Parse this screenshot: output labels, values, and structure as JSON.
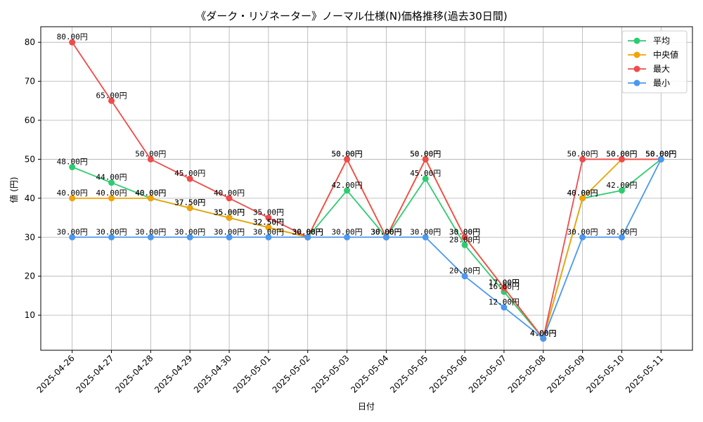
{
  "chart_data": {
    "type": "line",
    "title": "《ダーク・リゾネーター》ノーマル仕様(N)価格推移(過去30日間)",
    "xlabel": "日付",
    "ylabel": "値 (円)",
    "ylim": [
      1,
      84
    ],
    "yticks": [
      10,
      20,
      30,
      40,
      50,
      60,
      70,
      80
    ],
    "grid": true,
    "legend_position": "top-right",
    "value_suffix": "円",
    "categories": [
      "2025-04-26",
      "2025-04-27",
      "2025-04-28",
      "2025-04-29",
      "2025-04-30",
      "2025-05-01",
      "2025-05-02",
      "2025-05-03",
      "2025-05-04",
      "2025-05-05",
      "2025-05-06",
      "2025-05-07",
      "2025-05-08",
      "2025-05-09",
      "2025-05-10",
      "2025-05-11"
    ],
    "series": [
      {
        "name": "平均",
        "color": "#2ecc71",
        "values": [
          48,
          44,
          40,
          37.5,
          35,
          32.5,
          30,
          42,
          30,
          45,
          28,
          16,
          4,
          40,
          42,
          50
        ]
      },
      {
        "name": "中央値",
        "color": "#f0a30a",
        "values": [
          40,
          40,
          40,
          37.5,
          35,
          32.5,
          30,
          50,
          30,
          50,
          30,
          17,
          4,
          40,
          50,
          50
        ]
      },
      {
        "name": "最大",
        "color": "#f04b4b",
        "values": [
          80,
          65,
          50,
          45,
          40,
          35,
          30,
          50,
          30,
          50,
          30,
          17,
          4,
          50,
          50,
          50
        ]
      },
      {
        "name": "最小",
        "color": "#4a98f0",
        "values": [
          30,
          30,
          30,
          30,
          30,
          30,
          30,
          30,
          30,
          30,
          20,
          12,
          4,
          30,
          30,
          50
        ]
      }
    ]
  }
}
